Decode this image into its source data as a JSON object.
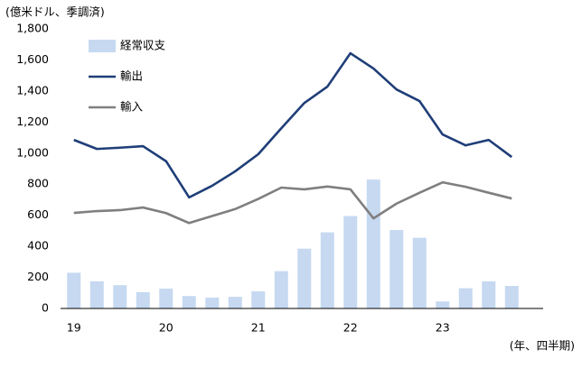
{
  "chart_data": {
    "type": "bar-line",
    "unit_label": "(億米ドル、季調済)",
    "x_label": "(年、四半期)",
    "categories": [
      "19",
      null,
      null,
      null,
      "20",
      null,
      null,
      null,
      "21",
      null,
      null,
      null,
      "22",
      null,
      null,
      null,
      "23",
      null,
      null,
      null
    ],
    "series": [
      {
        "name": "経常収支",
        "type": "bar",
        "color": "#c6d9f1",
        "values": [
          230,
          175,
          150,
          105,
          128,
          80,
          70,
          75,
          110,
          240,
          385,
          490,
          595,
          830,
          505,
          455,
          45,
          130,
          175,
          145
        ]
      },
      {
        "name": "輸出",
        "type": "line",
        "color": "#1f3e78",
        "values": [
          1085,
          1027,
          1035,
          1045,
          948,
          715,
          790,
          883,
          993,
          1160,
          1323,
          1428,
          1643,
          1545,
          1410,
          1335,
          1120,
          1050,
          1085,
          975
        ]
      },
      {
        "name": "輸入",
        "type": "line",
        "color": "#7f7f7f",
        "values": [
          615,
          627,
          633,
          650,
          614,
          550,
          595,
          640,
          705,
          778,
          767,
          785,
          767,
          580,
          675,
          745,
          812,
          783,
          745,
          708
        ]
      }
    ],
    "ylim": [
      0,
      1800
    ],
    "yticks": [
      0,
      200,
      400,
      600,
      800,
      {
        "value": 1000,
        "label": "1,000"
      },
      {
        "value": 1200,
        "label": "1,200"
      },
      {
        "value": 1400,
        "label": "1,400"
      },
      {
        "value": 1600,
        "label": "1,600"
      },
      {
        "value": 1800,
        "label": "1,800"
      }
    ],
    "legend": "top-left"
  }
}
